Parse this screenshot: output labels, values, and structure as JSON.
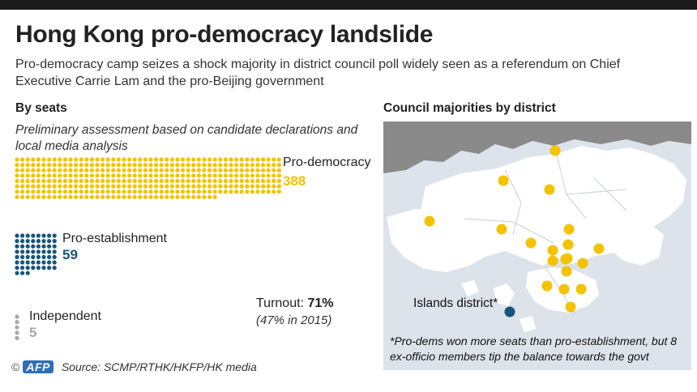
{
  "header": {
    "title": "Hong Kong pro-democracy landslide",
    "subtitle": "Pro-democracy camp seizes a shock majority in district council poll widely seen as a referendum on Chief Executive Carrie Lam and the pro-Beijing government"
  },
  "seats": {
    "heading": "By seats",
    "note": "Preliminary assessment based on candidate declarations and local media analysis"
  },
  "chart_data": {
    "type": "dot-matrix",
    "title": "By seats",
    "series": [
      {
        "name": "Pro-democracy",
        "value": 388,
        "color": "#f5c200"
      },
      {
        "name": "Pro-establishment",
        "value": 59,
        "color": "#175479"
      },
      {
        "name": "Independent",
        "value": 5,
        "color": "#a8a8a8"
      }
    ]
  },
  "labels": {
    "prodem_name": "Pro-democracy",
    "prodem_value": "388",
    "proest_name": "Pro-establishment",
    "proest_value": "59",
    "indep_name": "Independent",
    "indep_value": "5"
  },
  "turnout": {
    "label": "Turnout:",
    "value": "71%",
    "comparison": "(47% in 2015)"
  },
  "map": {
    "heading": "Council majorities by district",
    "islands_label": "Islands district*",
    "footnote": "*Pro-dems won more seats than pro-establishment, but 8 ex-officio members tip the balance towards the govt",
    "colors": {
      "pro_democracy": "#f5c200",
      "pro_establishment": "#175479",
      "land": "#ffffff",
      "water": "#dde3ea",
      "mainland": "#8a8a8a"
    }
  },
  "footer": {
    "copyright": "©",
    "agency": "AFP",
    "source": "Source: SCMP/RTHK/HKFP/HK media"
  }
}
